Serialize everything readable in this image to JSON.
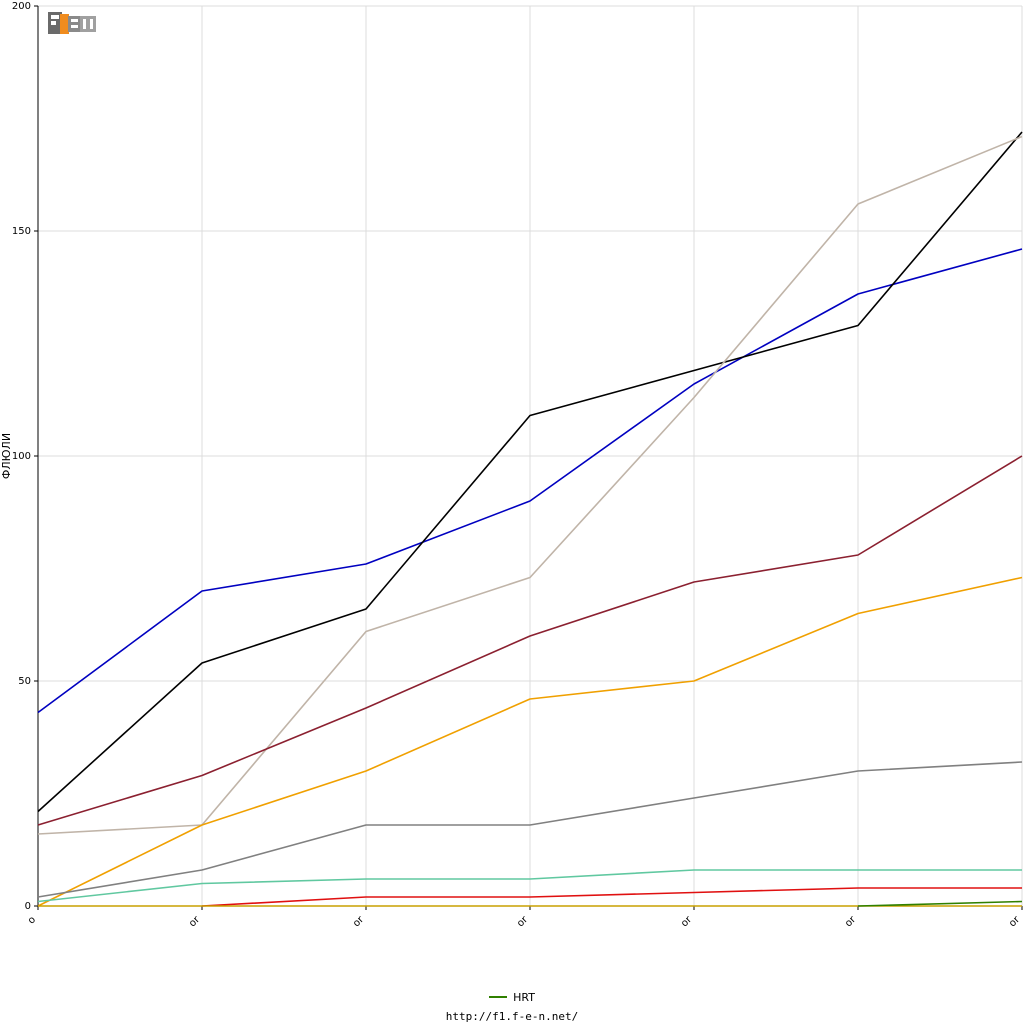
{
  "chart_data": {
    "type": "line",
    "title": "",
    "xlabel": "",
    "ylabel": "ФЛЮЛИ",
    "ylim": [
      0,
      200
    ],
    "yticks": [
      0,
      50,
      100,
      150,
      200
    ],
    "x_tick_labels": [
      "o",
      "or",
      "or",
      "or",
      "or",
      "or",
      "or"
    ],
    "grid": true,
    "legend": {
      "position": "bottom-center",
      "entries": [
        "HRT"
      ]
    },
    "series": [
      {
        "color": "#0000c0",
        "values": [
          43,
          70,
          76,
          90,
          116,
          136,
          146
        ]
      },
      {
        "color": "#000000",
        "values": [
          21,
          54,
          66,
          109,
          119,
          129,
          172
        ]
      },
      {
        "color": "#c0b4a8",
        "values": [
          16,
          18,
          61,
          73,
          113,
          156,
          171
        ]
      },
      {
        "color": "#8b2030",
        "values": [
          18,
          29,
          44,
          60,
          72,
          78,
          100
        ]
      },
      {
        "color": "#f0a000",
        "values": [
          0,
          18,
          30,
          46,
          50,
          65,
          73
        ]
      },
      {
        "color": "#808080",
        "values": [
          2,
          8,
          18,
          18,
          24,
          30,
          32
        ]
      },
      {
        "color": "#60c8a0",
        "values": [
          1,
          5,
          6,
          6,
          8,
          8,
          8
        ]
      },
      {
        "color": "#e01010",
        "values": [
          null,
          0,
          2,
          2,
          3,
          4,
          4
        ]
      },
      {
        "color": "#c8a000",
        "values": [
          0,
          0,
          0,
          0,
          0,
          0,
          0
        ]
      },
      {
        "name": "HRT",
        "color": "#308000",
        "values": [
          null,
          null,
          null,
          null,
          null,
          0,
          1
        ]
      }
    ]
  },
  "legend_label": "HRT",
  "legend_color": "#308000",
  "footer_url": "http://f1.f-e-n.net/",
  "logo": {
    "icon": "f1-fen-logo"
  }
}
